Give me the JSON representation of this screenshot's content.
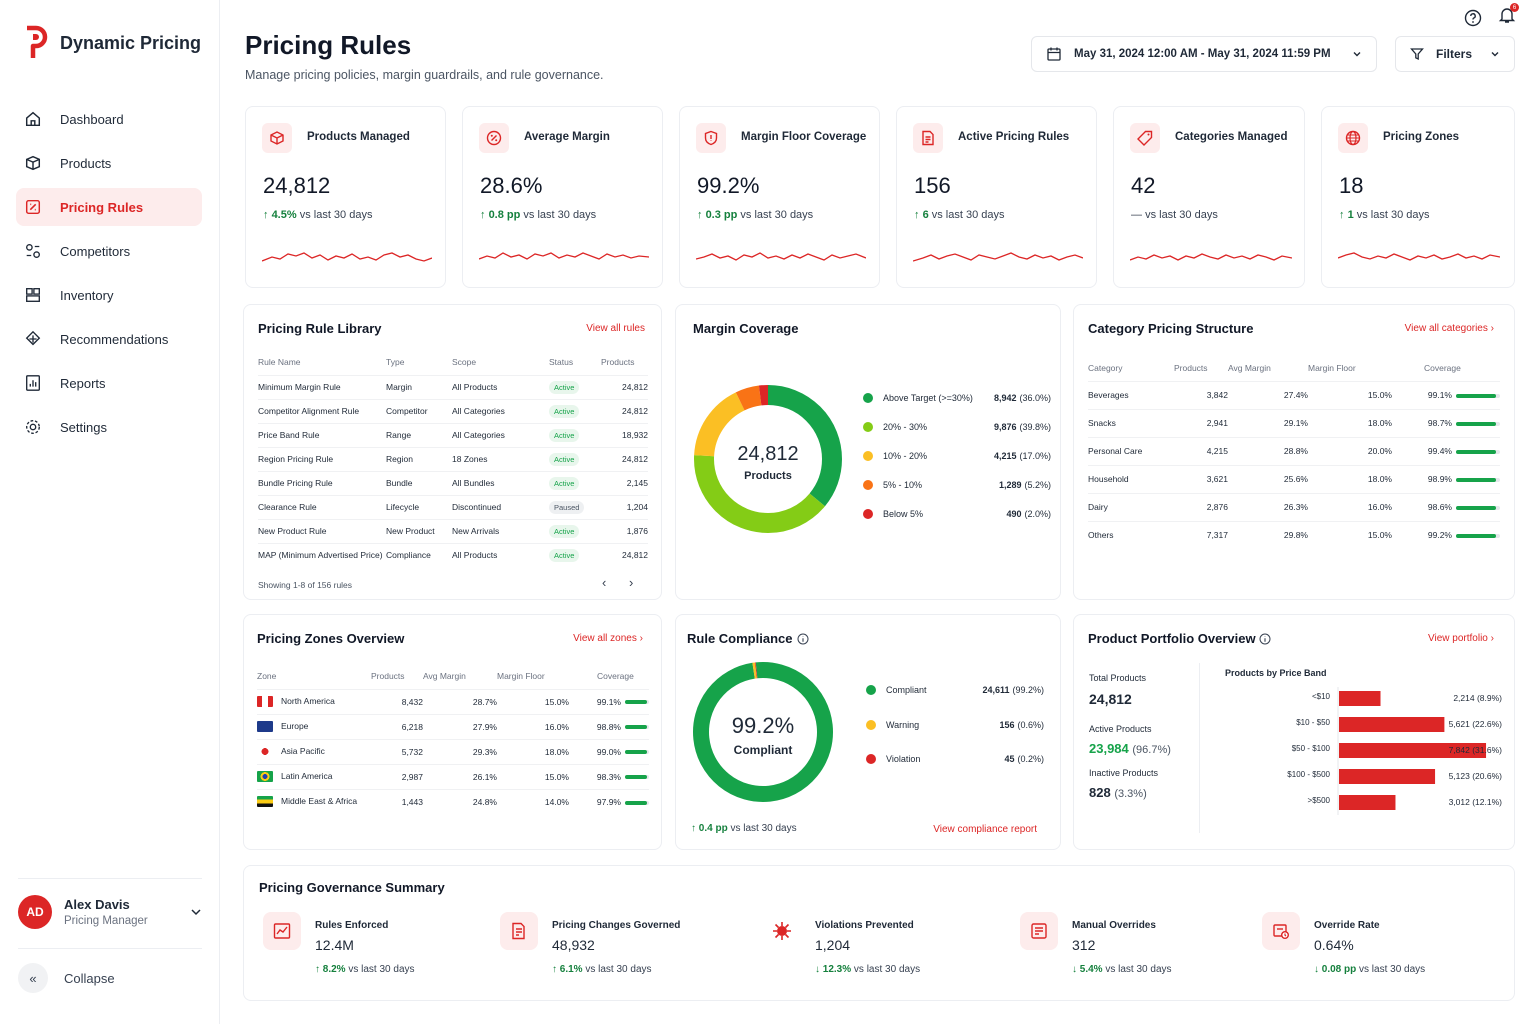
{
  "app": {
    "name": "Dynamic Pricing"
  },
  "nav": [
    {
      "label": "Dashboard",
      "icon": "home-icon"
    },
    {
      "label": "Products",
      "icon": "box-icon"
    },
    {
      "label": "Pricing Rules",
      "icon": "rules-icon",
      "active": true
    },
    {
      "label": "Competitors",
      "icon": "competitors-icon"
    },
    {
      "label": "Inventory",
      "icon": "inventory-icon"
    },
    {
      "label": "Recommendations",
      "icon": "recommendations-icon"
    },
    {
      "label": "Reports",
      "icon": "reports-icon"
    },
    {
      "label": "Settings",
      "icon": "gear-icon"
    }
  ],
  "user": {
    "initials": "AD",
    "name": "Alex Davis",
    "role": "Pricing Manager"
  },
  "collapse_label": "Collapse",
  "header": {
    "title": "Pricing Rules",
    "subtitle": "Manage pricing policies, margin guardrails, and rule governance.",
    "date_range": "May 31, 2024 12:00 AM - May 31, 2024 11:59 PM",
    "filters_label": "Filters",
    "notification_count": "6"
  },
  "kpis": [
    {
      "label": "Products Managed",
      "value": "24,812",
      "delta": "4.5%",
      "suffix": "vs last 30 days",
      "trend": "up",
      "icon": "cube-icon"
    },
    {
      "label": "Average Margin",
      "value": "28.6%",
      "delta": "0.8 pp",
      "suffix": "vs last 30 days",
      "trend": "up",
      "icon": "percent-icon"
    },
    {
      "label": "Margin Floor Coverage",
      "value": "99.2%",
      "delta": "0.3 pp",
      "suffix": "vs last 30 days",
      "trend": "up",
      "icon": "shield-icon"
    },
    {
      "label": "Active Pricing Rules",
      "value": "156",
      "delta": "6",
      "suffix": "vs last 30 days",
      "trend": "up",
      "icon": "document-icon"
    },
    {
      "label": "Categories Managed",
      "value": "42",
      "delta": "—",
      "suffix": "vs last 30 days",
      "trend": "flat",
      "icon": "tag-icon"
    },
    {
      "label": "Pricing Zones",
      "value": "18",
      "delta": "1",
      "suffix": "vs last 30 days",
      "trend": "up",
      "icon": "globe-icon"
    }
  ],
  "rule_library": {
    "title": "Pricing Rule Library",
    "link": "View all rules",
    "headers": [
      "Rule Name",
      "Type",
      "Scope",
      "Status",
      "Products"
    ],
    "rows": [
      [
        "Minimum Margin Rule",
        "Margin",
        "All Products",
        "Active",
        "24,812"
      ],
      [
        "Competitor Alignment Rule",
        "Competitor",
        "All Categories",
        "Active",
        "24,812"
      ],
      [
        "Price Band Rule",
        "Range",
        "All Categories",
        "Active",
        "18,932"
      ],
      [
        "Region Pricing Rule",
        "Region",
        "18 Zones",
        "Active",
        "24,812"
      ],
      [
        "Bundle Pricing Rule",
        "Bundle",
        "All Bundles",
        "Active",
        "2,145"
      ],
      [
        "Clearance Rule",
        "Lifecycle",
        "Discontinued",
        "Paused",
        "1,204"
      ],
      [
        "New Product Rule",
        "New Product",
        "New Arrivals",
        "Active",
        "1,876"
      ],
      [
        "MAP (Minimum Advertised Price)",
        "Compliance",
        "All Products",
        "Active",
        "24,812"
      ]
    ],
    "footer": "Showing 1-8 of 156 rules"
  },
  "margin_coverage": {
    "title": "Margin Coverage",
    "center_value": "24,812",
    "center_label": "Products",
    "segments": [
      {
        "label": "Above Target (>=30%)",
        "value": "8,942",
        "pct": "(36.0%)",
        "share": 36.0,
        "color": "#16a34a"
      },
      {
        "label": "20% - 30%",
        "value": "9,876",
        "pct": "(39.8%)",
        "share": 39.8,
        "color": "#84cc16"
      },
      {
        "label": "10% - 20%",
        "value": "4,215",
        "pct": "(17.0%)",
        "share": 17.0,
        "color": "#fbbf24"
      },
      {
        "label": "5% - 10%",
        "value": "1,289",
        "pct": "(5.2%)",
        "share": 5.2,
        "color": "#f97316"
      },
      {
        "label": "Below 5%",
        "value": "490",
        "pct": "(2.0%)",
        "share": 2.0,
        "color": "#dc2626"
      }
    ]
  },
  "category_structure": {
    "title": "Category Pricing Structure",
    "link": "View all categories",
    "headers": [
      "Category",
      "Products",
      "Avg Margin",
      "Margin Floor",
      "Coverage"
    ],
    "rows": [
      {
        "name": "Beverages",
        "products": "3,842",
        "margin": "27.4%",
        "floor": "15.0%",
        "coverage": "99.1%",
        "cov": 99.1
      },
      {
        "name": "Snacks",
        "products": "2,941",
        "margin": "29.1%",
        "floor": "18.0%",
        "coverage": "98.7%",
        "cov": 98.7
      },
      {
        "name": "Personal Care",
        "products": "4,215",
        "margin": "28.8%",
        "floor": "20.0%",
        "coverage": "99.4%",
        "cov": 99.4
      },
      {
        "name": "Household",
        "products": "3,621",
        "margin": "25.6%",
        "floor": "18.0%",
        "coverage": "98.9%",
        "cov": 98.9
      },
      {
        "name": "Dairy",
        "products": "2,876",
        "margin": "26.3%",
        "floor": "16.0%",
        "coverage": "98.6%",
        "cov": 98.6
      },
      {
        "name": "Others",
        "products": "7,317",
        "margin": "29.8%",
        "floor": "15.0%",
        "coverage": "99.2%",
        "cov": 99.2
      }
    ]
  },
  "zones": {
    "title": "Pricing Zones Overview",
    "link": "View all zones",
    "headers": [
      "Zone",
      "Products",
      "Avg Margin",
      "Margin Floor",
      "Coverage"
    ],
    "rows": [
      {
        "name": "North America",
        "products": "8,432",
        "margin": "28.7%",
        "floor": "15.0%",
        "coverage": "99.1%",
        "cov": 99.1,
        "flag": "flag-canada-icon"
      },
      {
        "name": "Europe",
        "products": "6,218",
        "margin": "27.9%",
        "floor": "16.0%",
        "coverage": "98.8%",
        "cov": 98.8,
        "flag": "flag-eu-icon"
      },
      {
        "name": "Asia Pacific",
        "products": "5,732",
        "margin": "29.3%",
        "floor": "18.0%",
        "coverage": "99.0%",
        "cov": 99.0,
        "flag": "flag-japan-icon"
      },
      {
        "name": "Latin America",
        "products": "2,987",
        "margin": "26.1%",
        "floor": "15.0%",
        "coverage": "98.3%",
        "cov": 98.3,
        "flag": "flag-brazil-icon"
      },
      {
        "name": "Middle East & Africa",
        "products": "1,443",
        "margin": "24.8%",
        "floor": "14.0%",
        "coverage": "97.9%",
        "cov": 97.9,
        "flag": "flag-africa-icon"
      }
    ]
  },
  "compliance": {
    "title": "Rule Compliance",
    "center_value": "99.2%",
    "center_label": "Compliant",
    "segments": [
      {
        "label": "Compliant",
        "value": "24,611",
        "pct": "(99.2%)",
        "share": 99.2,
        "color": "#16a34a"
      },
      {
        "label": "Warning",
        "value": "156",
        "pct": "(0.6%)",
        "share": 0.6,
        "color": "#fbbf24"
      },
      {
        "label": "Violation",
        "value": "45",
        "pct": "(0.2%)",
        "share": 0.2,
        "color": "#dc2626"
      }
    ],
    "delta": "0.4 pp",
    "delta_suffix": "vs last 30 days",
    "link": "View compliance report"
  },
  "portfolio": {
    "title": "Product Portfolio Overview",
    "link": "View portfolio",
    "total_label": "Total Products",
    "total_value": "24,812",
    "active_label": "Active Products",
    "active_value": "23,984",
    "active_pct": "(96.7%)",
    "inactive_label": "Inactive Products",
    "inactive_value": "828",
    "inactive_pct": "(3.3%)",
    "chart_title": "Products by Price Band",
    "chart_data": {
      "type": "bar",
      "orientation": "horizontal",
      "categories": [
        "<$10",
        "$10 - $50",
        "$50 - $100",
        "$100 - $500",
        ">$500"
      ],
      "values": [
        2214,
        5621,
        7842,
        5123,
        3012
      ],
      "labels": [
        "2,214 (8.9%)",
        "5,621 (22.6%)",
        "7,842 (31.6%)",
        "5,123 (20.6%)",
        "3,012 (12.1%)"
      ],
      "color": "#dc2626"
    }
  },
  "governance": {
    "title": "Pricing Governance Summary",
    "items": [
      {
        "label": "Rules Enforced",
        "value": "12.4M",
        "delta": "8.2%",
        "dir": "up",
        "suffix": "vs last 30 days",
        "icon": "chart-icon"
      },
      {
        "label": "Pricing Changes Governed",
        "value": "48,932",
        "delta": "6.1%",
        "dir": "up",
        "suffix": "vs last 30 days",
        "icon": "document-edit-icon"
      },
      {
        "label": "Violations Prevented",
        "value": "1,204",
        "delta": "12.3%",
        "dir": "down",
        "suffix": "vs last 30 days",
        "icon": "virus-icon"
      },
      {
        "label": "Manual Overrides",
        "value": "312",
        "delta": "5.4%",
        "dir": "down",
        "suffix": "vs last 30 days",
        "icon": "edit-list-icon"
      },
      {
        "label": "Override Rate",
        "value": "0.64%",
        "delta": "0.08 pp",
        "dir": "down",
        "suffix": "vs last 30 days",
        "icon": "override-icon"
      }
    ]
  },
  "colors": {
    "accent": "#dc2626",
    "positive": "#16a34a"
  }
}
